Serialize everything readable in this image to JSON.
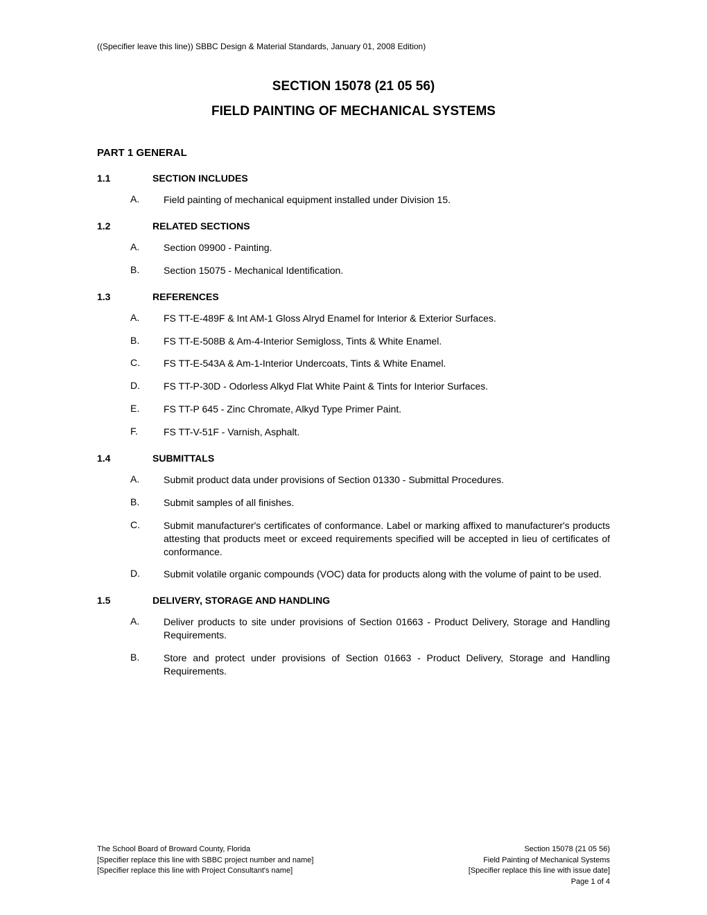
{
  "header_note": "((Specifier leave this line)) SBBC Design & Material Standards, January 01, 2008 Edition)",
  "section_number": "SECTION 15078 (21 05 56)",
  "section_title": "FIELD PAINTING OF MECHANICAL SYSTEMS",
  "part_heading": "PART 1   GENERAL",
  "subsections": {
    "s1": {
      "number": "1.1",
      "title": "SECTION INCLUDES",
      "items": {
        "a": {
          "letter": "A.",
          "text": "Field painting of mechanical equipment installed under Division 15."
        }
      }
    },
    "s2": {
      "number": "1.2",
      "title": "RELATED SECTIONS",
      "items": {
        "a": {
          "letter": "A.",
          "text": "Section 09900 - Painting."
        },
        "b": {
          "letter": "B.",
          "text": "Section 15075 - Mechanical Identification."
        }
      }
    },
    "s3": {
      "number": "1.3",
      "title": "REFERENCES",
      "items": {
        "a": {
          "letter": "A.",
          "text": "FS TT-E-489F & Int AM-1 Gloss Alryd Enamel for Interior & Exterior Surfaces."
        },
        "b": {
          "letter": "B.",
          "text": "FS TT-E-508B & Am-4-Interior Semigloss, Tints & White Enamel."
        },
        "c": {
          "letter": "C.",
          "text": "FS TT-E-543A & Am-1-Interior Undercoats, Tints & White Enamel."
        },
        "d": {
          "letter": "D.",
          "text": "FS TT-P-30D - Odorless Alkyd Flat White Paint & Tints for Interior Surfaces."
        },
        "e": {
          "letter": "E.",
          "text": "FS TT-P 645 - Zinc Chromate, Alkyd Type Primer Paint."
        },
        "f": {
          "letter": "F.",
          "text": "FS TT-V-51F - Varnish, Asphalt."
        }
      }
    },
    "s4": {
      "number": "1.4",
      "title": "SUBMITTALS",
      "items": {
        "a": {
          "letter": "A.",
          "text": "Submit product data under provisions of Section 01330 - Submittal Procedures."
        },
        "b": {
          "letter": "B.",
          "text": "Submit samples of all finishes."
        },
        "c": {
          "letter": "C.",
          "text": "Submit manufacturer's certificates of conformance. Label or marking affixed to manufacturer's products attesting that products meet or exceed requirements specified will be accepted in lieu of certificates of conformance."
        },
        "d": {
          "letter": "D.",
          "text": "Submit volatile organic compounds (VOC) data for products along with the volume of paint to be used."
        }
      }
    },
    "s5": {
      "number": "1.5",
      "title": "DELIVERY, STORAGE AND HANDLING",
      "items": {
        "a": {
          "letter": "A.",
          "text": "Deliver products to site under provisions of Section 01663 - Product Delivery, Storage and Handling Requirements."
        },
        "b": {
          "letter": "B.",
          "text": "Store and protect under provisions of Section 01663 - Product Delivery, Storage and Handling Requirements."
        }
      }
    }
  },
  "footer": {
    "left": {
      "line1": "The School Board of Broward County, Florida",
      "line2": "[Specifier replace this line with SBBC project number and name]",
      "line3": "[Specifier replace this line with Project Consultant's name]"
    },
    "right": {
      "line1": "Section 15078 (21 05 56)",
      "line2": "Field Painting of Mechanical Systems",
      "line3": "[Specifier replace this line with issue date]",
      "line4": "Page 1 of 4"
    }
  }
}
